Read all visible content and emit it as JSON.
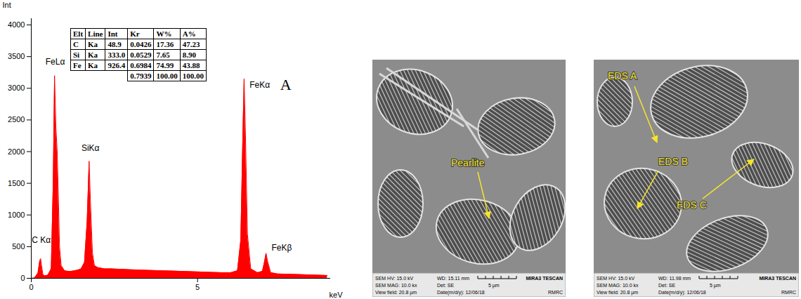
{
  "chart_data": {
    "type": "area",
    "xlabel": "keV",
    "ylabel": "Int",
    "xlim": [
      0,
      9
    ],
    "xticks": [
      0,
      5
    ],
    "ylim": [
      0,
      4100
    ],
    "yticks": [
      0,
      500,
      1000,
      1500,
      2000,
      2500,
      3000,
      3500,
      4000
    ],
    "grid": false,
    "color": "#ff0000",
    "x": [
      0.0,
      0.1,
      0.2,
      0.25,
      0.28,
      0.31,
      0.35,
      0.4,
      0.5,
      0.6,
      0.66,
      0.7,
      0.74,
      0.78,
      0.81,
      0.85,
      0.9,
      1.0,
      1.1,
      1.2,
      1.3,
      1.4,
      1.5,
      1.6,
      1.68,
      1.74,
      1.78,
      1.84,
      1.9,
      2.0,
      2.2,
      2.4,
      2.6,
      2.8,
      3.0,
      3.3,
      3.6,
      3.9,
      4.2,
      4.5,
      4.8,
      5.1,
      5.4,
      5.7,
      6.0,
      6.2,
      6.3,
      6.36,
      6.4,
      6.44,
      6.5,
      6.6,
      6.8,
      6.95,
      7.01,
      7.06,
      7.11,
      7.2,
      7.4,
      7.7,
      8.0,
      8.3,
      8.6,
      8.9
    ],
    "values": [
      0,
      5,
      80,
      260,
      310,
      200,
      60,
      40,
      50,
      150,
      1500,
      3200,
      2400,
      2000,
      1400,
      500,
      200,
      120,
      110,
      110,
      120,
      130,
      150,
      250,
      900,
      1850,
      1200,
      400,
      200,
      170,
      150,
      150,
      145,
      140,
      135,
      130,
      125,
      120,
      115,
      110,
      105,
      100,
      95,
      90,
      90,
      120,
      600,
      2200,
      3150,
      2300,
      700,
      150,
      90,
      110,
      250,
      395,
      260,
      90,
      70,
      65,
      60,
      55,
      50,
      45
    ],
    "annotations": [
      {
        "text": "FeLα",
        "x": 0.72,
        "y": 3420
      },
      {
        "text": "SiKα",
        "x": 1.78,
        "y": 2050
      },
      {
        "text": "C Kα",
        "x": 0.3,
        "y": 600
      },
      {
        "text": "FeKα",
        "x": 6.87,
        "y": 3050
      },
      {
        "text": "FeKβ",
        "x": 7.53,
        "y": 480
      }
    ],
    "panel_letter": {
      "text": "A",
      "x": 7.65,
      "y": 3050
    }
  },
  "eds_table": {
    "header": [
      "Elt",
      "Line",
      "Int",
      "Kr",
      "W%",
      "A%"
    ],
    "rows": [
      [
        "C",
        "Ka",
        "48.9",
        "0.0426",
        "17.36",
        "47.23"
      ],
      [
        "Si",
        "Ka",
        "333.0",
        "0.0529",
        "7.65",
        "8.90"
      ],
      [
        "Fe",
        "Ka",
        "926.4",
        "0.6984",
        "74.99",
        "43.88"
      ],
      [
        null,
        null,
        null,
        "0.7939",
        "100.00",
        "100.00"
      ]
    ]
  },
  "sem_images": [
    {
      "labels": [
        "Pearlite"
      ],
      "info": {
        "hv": "SEM HV: 15.0 kV",
        "wd": "WD: 15.11 mm",
        "brand": "MIRA3 TESCAN",
        "mag": "SEM MAG: 10.0 kx",
        "det": "Det: SE",
        "scale": "5 µm",
        "view": "View field: 20.8 µm",
        "date": "Date(m/d/y): 12/06/18",
        "lab": "RMRC"
      }
    },
    {
      "labels": [
        "EDS A",
        "EDS B",
        "EDS C"
      ],
      "info": {
        "hv": "SEM HV: 15.0 kV",
        "wd": "WD: 11.98 mm",
        "brand": "MIRA3 TESCAN",
        "mag": "SEM MAG: 10.0 kx",
        "det": "Det: SE",
        "scale": "5 µm",
        "view": "View field: 20.8 µm",
        "date": "Date(m/d/y): 12/06/18",
        "lab": "RMRC"
      }
    }
  ]
}
